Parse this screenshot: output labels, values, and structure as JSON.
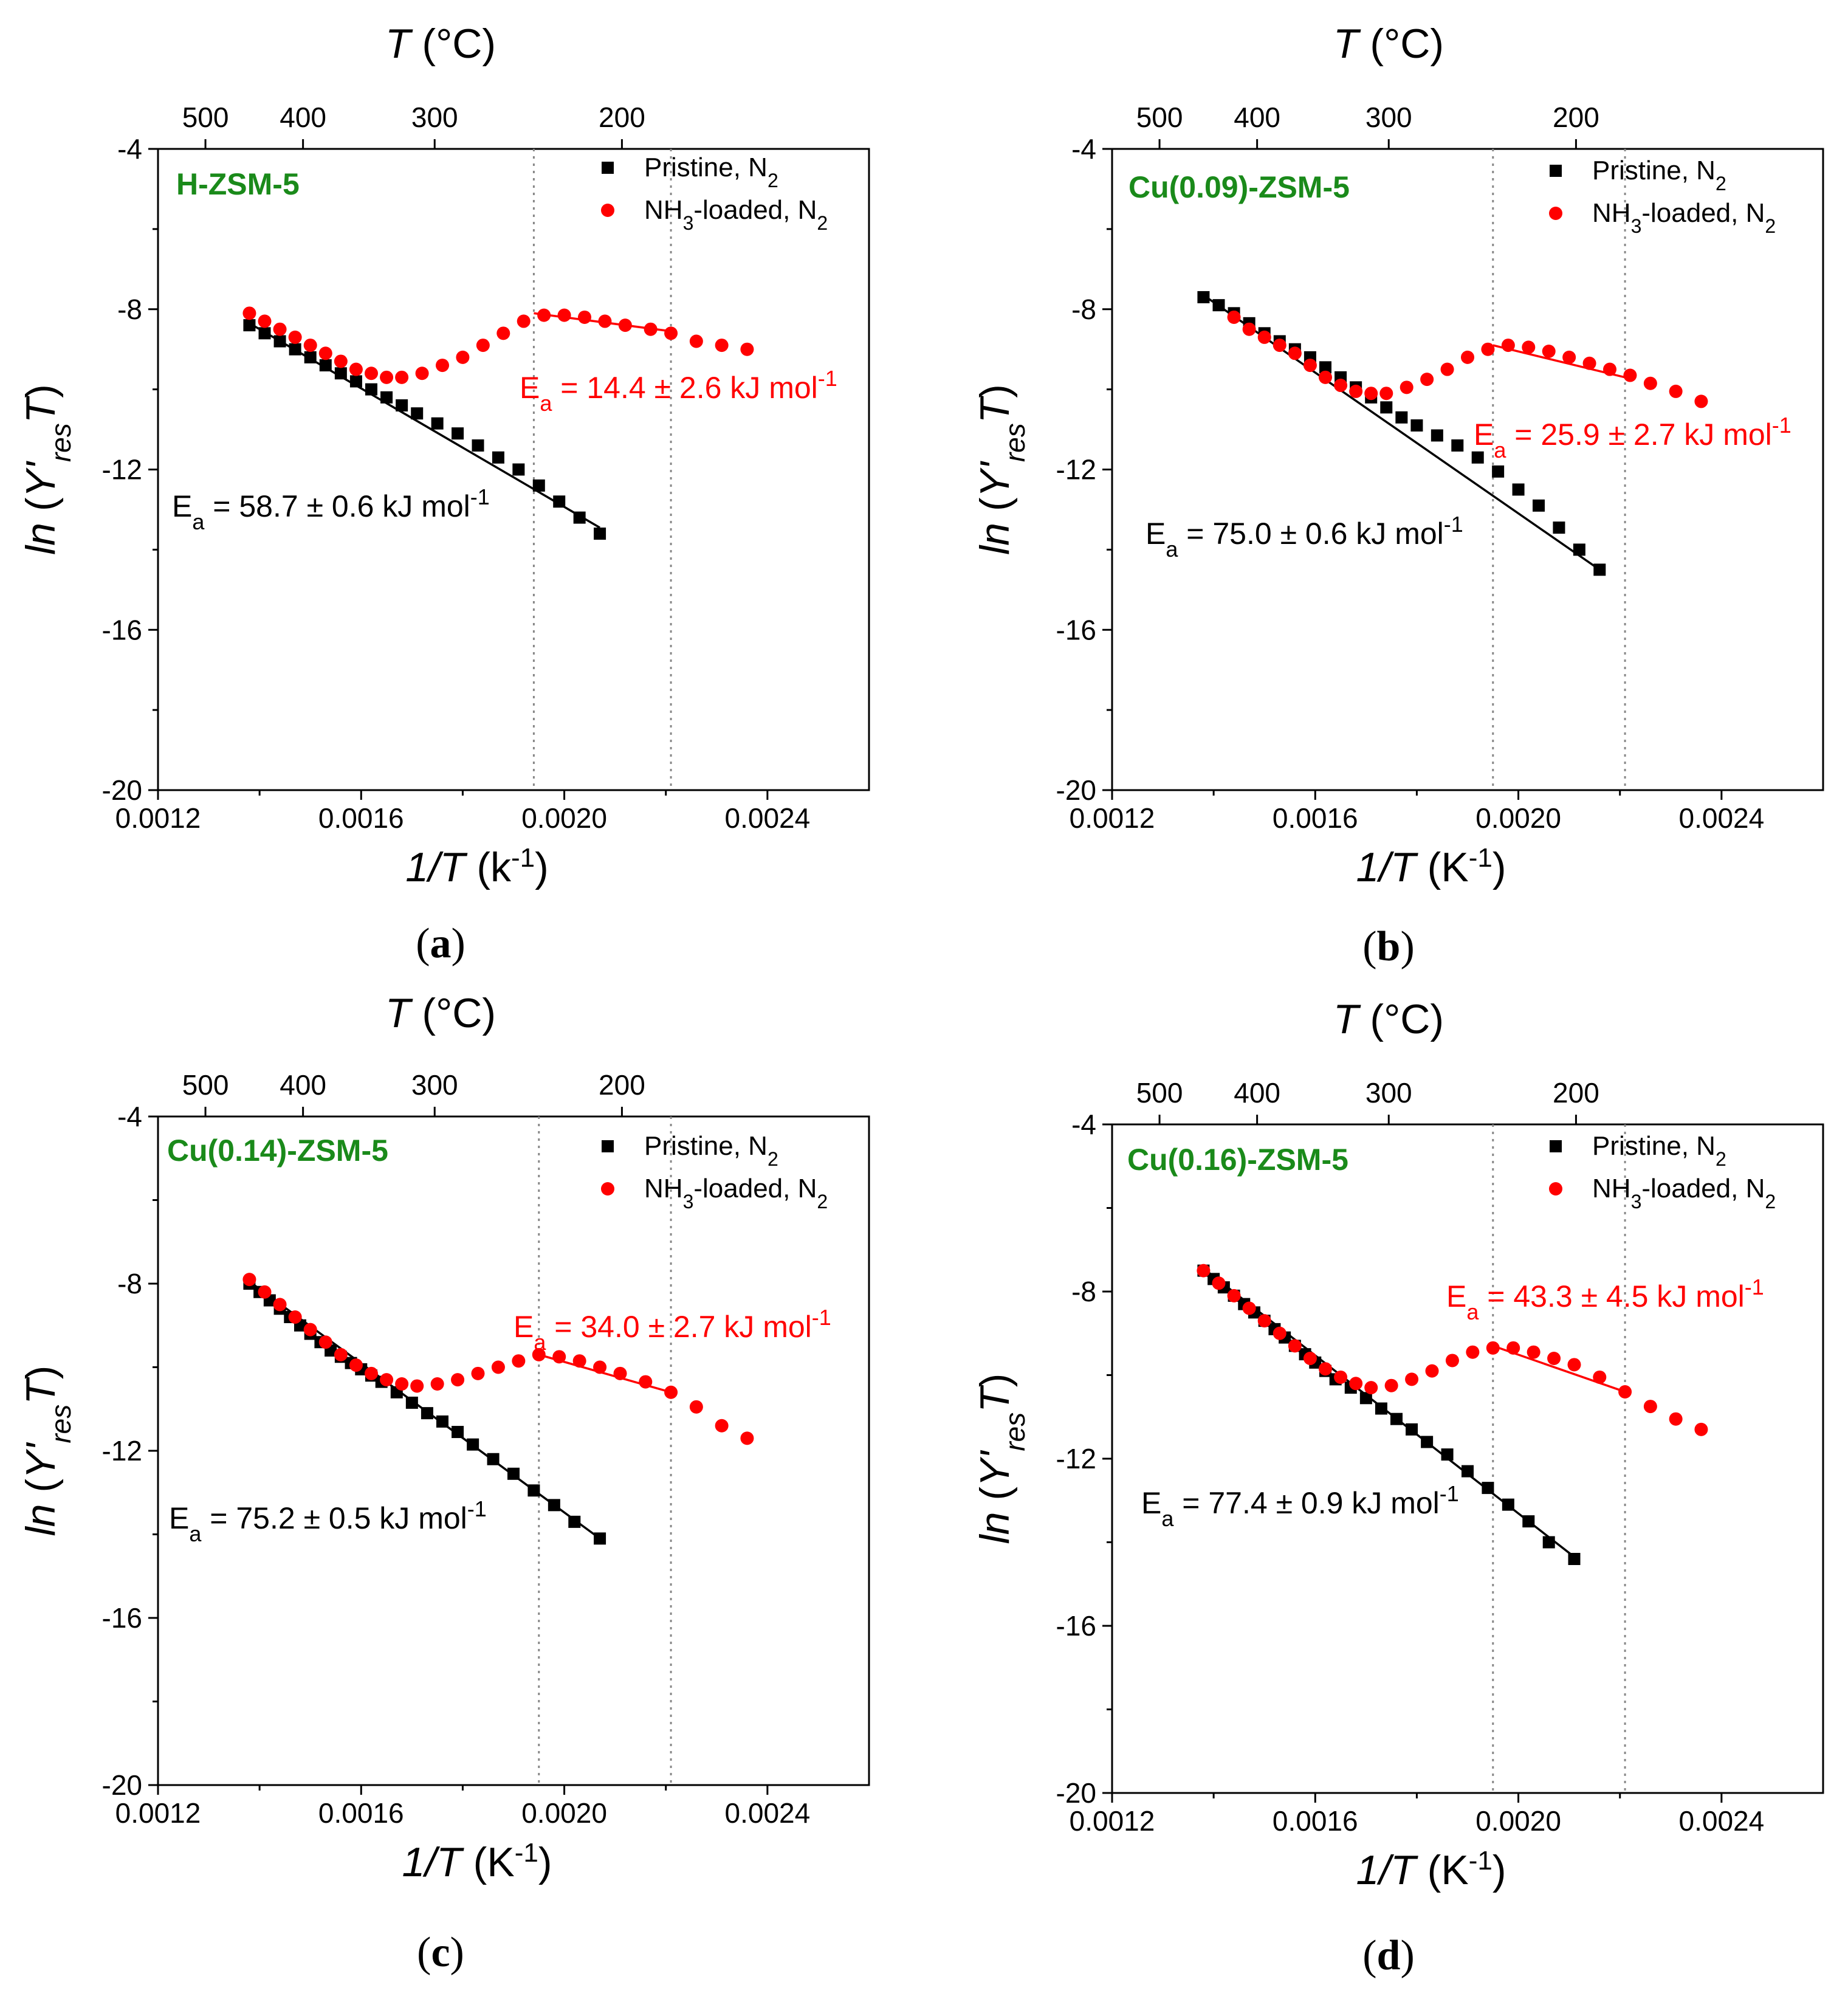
{
  "figure": {
    "captions": [
      "(a)",
      "(b)",
      "(c)",
      "(d)"
    ]
  },
  "colors": {
    "pristine": "#000000",
    "nh3": "#ff0000",
    "sample_label": "#1a8a1a",
    "guide_line": "#888888"
  },
  "chart_data": [
    {
      "type": "scatter",
      "panel": "a",
      "sample": "H-ZSM-5",
      "xlabel": "1/T (k-1)",
      "ylabel": "ln (Y'res T)",
      "top_xlabel": "T (°C)",
      "xlim": [
        0.0012,
        0.0026
      ],
      "ylim": [
        -20,
        -4
      ],
      "xticks": [
        0.0012,
        0.0016,
        0.002,
        0.0024
      ],
      "xtick_labels": [
        "0.0012",
        "0.0016",
        "0.0020",
        "0.0024"
      ],
      "yticks": [
        -4,
        -8,
        -12,
        -16,
        -20
      ],
      "ytick_labels": [
        "-4",
        "-8",
        "-12",
        "-16",
        "-20"
      ],
      "top_ticks_celsius": [
        500,
        400,
        300,
        200
      ],
      "top_tick_labels": [
        "500",
        "400",
        "300",
        "200"
      ],
      "guide_lines_x": [
        0.00194,
        0.00221
      ],
      "legend": [
        "Pristine, N2",
        "NH3-loaded, N2"
      ],
      "series": [
        {
          "name": "Pristine, N2",
          "marker": "square",
          "x": [
            0.00138,
            0.00141,
            0.00144,
            0.00147,
            0.0015,
            0.00153,
            0.00156,
            0.00159,
            0.00162,
            0.00165,
            0.00168,
            0.00171,
            0.00175,
            0.00179,
            0.00183,
            0.00187,
            0.00191,
            0.00195,
            0.00199,
            0.00203,
            0.00207
          ],
          "y": [
            -8.4,
            -8.6,
            -8.8,
            -9.0,
            -9.2,
            -9.4,
            -9.6,
            -9.8,
            -10.0,
            -10.2,
            -10.4,
            -10.6,
            -10.85,
            -11.1,
            -11.4,
            -11.7,
            -12.0,
            -12.4,
            -12.8,
            -13.2,
            -13.6
          ]
        },
        {
          "name": "NH3-loaded, N2",
          "marker": "circle",
          "x": [
            0.00138,
            0.00141,
            0.00144,
            0.00147,
            0.0015,
            0.00153,
            0.00156,
            0.00159,
            0.00162,
            0.00165,
            0.00168,
            0.00172,
            0.00176,
            0.0018,
            0.00184,
            0.00188,
            0.00192,
            0.00196,
            0.002,
            0.00204,
            0.00208,
            0.00212,
            0.00217,
            0.00221,
            0.00226,
            0.00231,
            0.00236
          ],
          "y": [
            -8.1,
            -8.3,
            -8.5,
            -8.7,
            -8.9,
            -9.1,
            -9.3,
            -9.5,
            -9.6,
            -9.7,
            -9.7,
            -9.6,
            -9.4,
            -9.2,
            -8.9,
            -8.6,
            -8.3,
            -8.15,
            -8.15,
            -8.2,
            -8.3,
            -8.4,
            -8.5,
            -8.6,
            -8.8,
            -8.9,
            -9.0
          ]
        }
      ],
      "fits": [
        {
          "series": "Pristine, N2",
          "x": [
            0.00138,
            0.00207
          ],
          "y": [
            -8.35,
            -13.45
          ]
        },
        {
          "series": "NH3-loaded, N2",
          "x": [
            0.00194,
            0.00221
          ],
          "y": [
            -8.1,
            -8.55
          ]
        }
      ],
      "annotations": {
        "pristine_ea": {
          "prefix": "E",
          "sub": "a",
          "value": " = 58.7 ± 0.6 kJ mol",
          "sup": "-1"
        },
        "nh3_ea": {
          "prefix": "E",
          "sub": "a",
          "value": " = 14.4 ± 2.6 kJ mol",
          "sup": "-1"
        }
      }
    },
    {
      "type": "scatter",
      "panel": "b",
      "sample": "Cu(0.09)-ZSM-5",
      "xlabel": "1/T (K-1)",
      "ylabel": "ln (Y'res T)",
      "top_xlabel": "T (°C)",
      "xlim": [
        0.0012,
        0.0026
      ],
      "ylim": [
        -20,
        -4
      ],
      "xticks": [
        0.0012,
        0.0016,
        0.002,
        0.0024
      ],
      "xtick_labels": [
        "0.0012",
        "0.0016",
        "0.0020",
        "0.0024"
      ],
      "yticks": [
        -4,
        -8,
        -12,
        -16,
        -20
      ],
      "ytick_labels": [
        "-4",
        "-8",
        "-12",
        "-16",
        "-20"
      ],
      "top_ticks_celsius": [
        500,
        400,
        300,
        200
      ],
      "top_tick_labels": [
        "500",
        "400",
        "300",
        "200"
      ],
      "guide_lines_x": [
        0.00195,
        0.00221
      ],
      "legend": [
        "Pristine, N2",
        "NH3-loaded, N2"
      ],
      "series": [
        {
          "name": "Pristine, N2",
          "marker": "square",
          "x": [
            0.00138,
            0.00141,
            0.00144,
            0.00147,
            0.0015,
            0.00153,
            0.00156,
            0.00159,
            0.00162,
            0.00165,
            0.00168,
            0.00171,
            0.00174,
            0.00177,
            0.0018,
            0.00184,
            0.00188,
            0.00192,
            0.00196,
            0.002,
            0.00204,
            0.00208,
            0.00212,
            0.00216
          ],
          "y": [
            -7.7,
            -7.9,
            -8.1,
            -8.35,
            -8.6,
            -8.8,
            -9.0,
            -9.2,
            -9.45,
            -9.7,
            -9.95,
            -10.2,
            -10.45,
            -10.7,
            -10.9,
            -11.15,
            -11.4,
            -11.7,
            -12.05,
            -12.5,
            -12.9,
            -13.45,
            -14.0,
            -14.5
          ]
        },
        {
          "name": "NH3-loaded, N2",
          "marker": "circle",
          "x": [
            0.00144,
            0.00147,
            0.0015,
            0.00153,
            0.00156,
            0.00159,
            0.00162,
            0.00165,
            0.00168,
            0.00171,
            0.00174,
            0.00178,
            0.00182,
            0.00186,
            0.0019,
            0.00194,
            0.00198,
            0.00202,
            0.00206,
            0.0021,
            0.00214,
            0.00218,
            0.00222,
            0.00226,
            0.00231,
            0.00236
          ],
          "y": [
            -8.2,
            -8.5,
            -8.7,
            -8.9,
            -9.1,
            -9.4,
            -9.7,
            -9.9,
            -10.05,
            -10.1,
            -10.1,
            -9.95,
            -9.75,
            -9.5,
            -9.2,
            -9.0,
            -8.9,
            -8.95,
            -9.05,
            -9.2,
            -9.35,
            -9.5,
            -9.65,
            -9.85,
            -10.05,
            -10.3
          ]
        }
      ],
      "fits": [
        {
          "series": "Pristine, N2",
          "x": [
            0.00138,
            0.00216
          ],
          "y": [
            -7.65,
            -14.5
          ]
        },
        {
          "series": "NH3-loaded, N2",
          "x": [
            0.00195,
            0.00221
          ],
          "y": [
            -8.9,
            -9.7
          ]
        }
      ],
      "annotations": {
        "pristine_ea": {
          "prefix": "E",
          "sub": "a",
          "value": " = 75.0 ± 0.6 kJ mol",
          "sup": "-1"
        },
        "nh3_ea": {
          "prefix": "E",
          "sub": "a",
          "value": " = 25.9 ± 2.7 kJ mol",
          "sup": "-1"
        }
      }
    },
    {
      "type": "scatter",
      "panel": "c",
      "sample": "Cu(0.14)-ZSM-5",
      "xlabel": "1/T (K-1)",
      "ylabel": "ln (Y'res T)",
      "top_xlabel": "T (°C)",
      "xlim": [
        0.0012,
        0.0026
      ],
      "ylim": [
        -20,
        -4
      ],
      "xticks": [
        0.0012,
        0.0016,
        0.002,
        0.0024
      ],
      "xtick_labels": [
        "0.0012",
        "0.0016",
        "0.0020",
        "0.0024"
      ],
      "yticks": [
        -4,
        -8,
        -12,
        -16,
        -20
      ],
      "ytick_labels": [
        "-4",
        "-8",
        "-12",
        "-16",
        "-20"
      ],
      "top_ticks_celsius": [
        500,
        400,
        300,
        200
      ],
      "top_tick_labels": [
        "500",
        "400",
        "300",
        "200"
      ],
      "guide_lines_x": [
        0.00195,
        0.00221
      ],
      "legend": [
        "Pristine, N2",
        "NH3-loaded, N2"
      ],
      "series": [
        {
          "name": "Pristine, N2",
          "marker": "square",
          "x": [
            0.00138,
            0.0014,
            0.00142,
            0.00144,
            0.00146,
            0.00148,
            0.0015,
            0.00152,
            0.00154,
            0.00156,
            0.00158,
            0.0016,
            0.00162,
            0.00164,
            0.00167,
            0.0017,
            0.00173,
            0.00176,
            0.00179,
            0.00182,
            0.00186,
            0.0019,
            0.00194,
            0.00198,
            0.00202,
            0.00207
          ],
          "y": [
            -8.0,
            -8.2,
            -8.4,
            -8.6,
            -8.8,
            -9.0,
            -9.2,
            -9.4,
            -9.6,
            -9.75,
            -9.9,
            -10.05,
            -10.2,
            -10.35,
            -10.6,
            -10.85,
            -11.1,
            -11.3,
            -11.55,
            -11.85,
            -12.2,
            -12.55,
            -12.95,
            -13.3,
            -13.7,
            -14.1
          ]
        },
        {
          "name": "NH3-loaded, N2",
          "marker": "circle",
          "x": [
            0.00138,
            0.00141,
            0.00144,
            0.00147,
            0.0015,
            0.00153,
            0.00156,
            0.00159,
            0.00162,
            0.00165,
            0.00168,
            0.00171,
            0.00175,
            0.00179,
            0.00183,
            0.00187,
            0.00191,
            0.00195,
            0.00199,
            0.00203,
            0.00207,
            0.00211,
            0.00216,
            0.00221,
            0.00226,
            0.00231,
            0.00236
          ],
          "y": [
            -7.9,
            -8.2,
            -8.5,
            -8.8,
            -9.1,
            -9.4,
            -9.7,
            -9.95,
            -10.15,
            -10.3,
            -10.4,
            -10.45,
            -10.4,
            -10.3,
            -10.15,
            -10.0,
            -9.85,
            -9.7,
            -9.75,
            -9.85,
            -10.0,
            -10.15,
            -10.35,
            -10.6,
            -10.95,
            -11.4,
            -11.7
          ]
        }
      ],
      "fits": [
        {
          "series": "Pristine, N2",
          "x": [
            0.00138,
            0.00207
          ],
          "y": [
            -7.95,
            -14.1
          ]
        },
        {
          "series": "NH3-loaded, N2",
          "x": [
            0.00195,
            0.00221
          ],
          "y": [
            -9.7,
            -10.6
          ]
        }
      ],
      "annotations": {
        "pristine_ea": {
          "prefix": "E",
          "sub": "a",
          "value": " = 75.2 ± 0.5 kJ mol",
          "sup": "-1"
        },
        "nh3_ea": {
          "prefix": "E",
          "sub": "a",
          "value": " = 34.0 ± 2.7 kJ mol",
          "sup": "-1"
        }
      }
    },
    {
      "type": "scatter",
      "panel": "d",
      "sample": "Cu(0.16)-ZSM-5",
      "xlabel": "1/T (K-1)",
      "ylabel": "ln (Y'res T)",
      "top_xlabel": "T (°C)",
      "xlim": [
        0.0012,
        0.0026
      ],
      "ylim": [
        -20,
        -4
      ],
      "xticks": [
        0.0012,
        0.0016,
        0.002,
        0.0024
      ],
      "xtick_labels": [
        "0.0012",
        "0.0016",
        "0.0020",
        "0.0024"
      ],
      "yticks": [
        -4,
        -8,
        -12,
        -16,
        -20
      ],
      "ytick_labels": [
        "-4",
        "-8",
        "-12",
        "-16",
        "-20"
      ],
      "top_ticks_celsius": [
        500,
        400,
        300,
        200
      ],
      "top_tick_labels": [
        "500",
        "400",
        "300",
        "200"
      ],
      "guide_lines_x": [
        0.00195,
        0.00221
      ],
      "legend": [
        "Pristine, N2",
        "NH3-loaded, N2"
      ],
      "series": [
        {
          "name": "Pristine, N2",
          "marker": "square",
          "x": [
            0.00138,
            0.0014,
            0.00142,
            0.00144,
            0.00146,
            0.00148,
            0.0015,
            0.00152,
            0.00154,
            0.00156,
            0.00158,
            0.0016,
            0.00162,
            0.00164,
            0.00167,
            0.0017,
            0.00173,
            0.00176,
            0.00179,
            0.00182,
            0.00186,
            0.0019,
            0.00194,
            0.00198,
            0.00202,
            0.00206,
            0.00211
          ],
          "y": [
            -7.5,
            -7.7,
            -7.9,
            -8.1,
            -8.3,
            -8.5,
            -8.7,
            -8.9,
            -9.1,
            -9.3,
            -9.5,
            -9.7,
            -9.9,
            -10.1,
            -10.3,
            -10.55,
            -10.8,
            -11.05,
            -11.3,
            -11.6,
            -11.9,
            -12.3,
            -12.7,
            -13.1,
            -13.5,
            -14.0,
            -14.4
          ]
        },
        {
          "name": "NH3-loaded, N2",
          "marker": "circle",
          "x": [
            0.00138,
            0.00141,
            0.00144,
            0.00147,
            0.0015,
            0.00153,
            0.00156,
            0.00159,
            0.00162,
            0.00165,
            0.00168,
            0.00171,
            0.00175,
            0.00179,
            0.00183,
            0.00187,
            0.00191,
            0.00195,
            0.00199,
            0.00203,
            0.00207,
            0.00211,
            0.00216,
            0.00221,
            0.00226,
            0.00231,
            0.00236
          ],
          "y": [
            -7.5,
            -7.8,
            -8.1,
            -8.4,
            -8.7,
            -9.0,
            -9.3,
            -9.6,
            -9.85,
            -10.05,
            -10.2,
            -10.3,
            -10.25,
            -10.1,
            -9.9,
            -9.65,
            -9.45,
            -9.35,
            -9.35,
            -9.45,
            -9.6,
            -9.75,
            -10.05,
            -10.4,
            -10.75,
            -11.05,
            -11.3
          ]
        }
      ],
      "fits": [
        {
          "series": "Pristine, N2",
          "x": [
            0.00138,
            0.00211
          ],
          "y": [
            -7.45,
            -14.35
          ]
        },
        {
          "series": "NH3-loaded, N2",
          "x": [
            0.00195,
            0.00221
          ],
          "y": [
            -9.3,
            -10.4
          ]
        }
      ],
      "annotations": {
        "pristine_ea": {
          "prefix": "E",
          "sub": "a",
          "value": " = 77.4 ± 0.9 kJ mol",
          "sup": "-1"
        },
        "nh3_ea": {
          "prefix": "E",
          "sub": "a",
          "value": " = 43.3 ± 4.5 kJ mol",
          "sup": "-1"
        }
      }
    }
  ]
}
